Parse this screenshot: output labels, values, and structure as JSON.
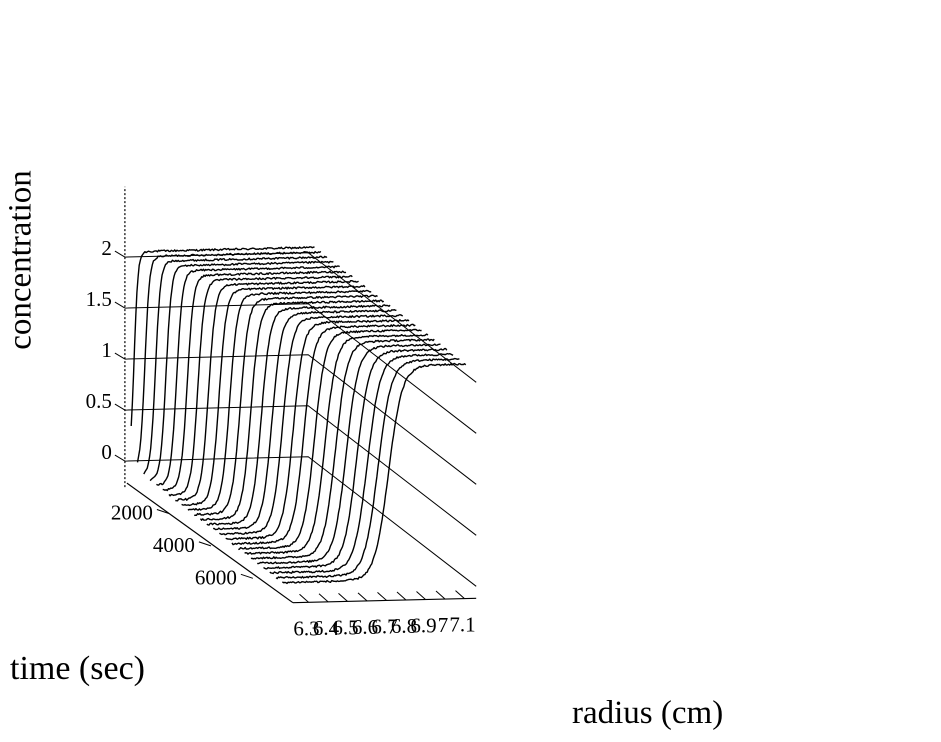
{
  "chart_data": {
    "type": "line",
    "projection": "3d-waterfall",
    "xlabel": "radius (cm)",
    "ylabel": "concentration",
    "tlabel": "time (sec)",
    "x_ticks": [
      6.3,
      6.4,
      6.5,
      6.6,
      6.7,
      6.8,
      6.9,
      7,
      7.1
    ],
    "y_ticks": [
      0,
      0.5,
      1,
      1.5,
      2
    ],
    "t_ticks": [
      2000,
      4000,
      6000
    ],
    "xlim": [
      6.22,
      7.16
    ],
    "ylim": [
      0,
      2.2
    ],
    "tlim": [
      0,
      8000
    ],
    "grid": true,
    "series_model": "sedimentation boundary: c(r) = 2.1 * logistic((r - midpoint) / width), one trace per scan time",
    "series": [
      {
        "time": 300,
        "midpoint": 6.235,
        "width": 0.01
      },
      {
        "time": 600,
        "midpoint": 6.258,
        "width": 0.012
      },
      {
        "time": 900,
        "midpoint": 6.28,
        "width": 0.013
      },
      {
        "time": 1200,
        "midpoint": 6.302,
        "width": 0.014
      },
      {
        "time": 1500,
        "midpoint": 6.324,
        "width": 0.015
      },
      {
        "time": 1800,
        "midpoint": 6.346,
        "width": 0.016
      },
      {
        "time": 2100,
        "midpoint": 6.368,
        "width": 0.017
      },
      {
        "time": 2400,
        "midpoint": 6.39,
        "width": 0.018
      },
      {
        "time": 2700,
        "midpoint": 6.412,
        "width": 0.019
      },
      {
        "time": 3000,
        "midpoint": 6.434,
        "width": 0.02
      },
      {
        "time": 3300,
        "midpoint": 6.456,
        "width": 0.021
      },
      {
        "time": 3600,
        "midpoint": 6.478,
        "width": 0.022
      },
      {
        "time": 3900,
        "midpoint": 6.5,
        "width": 0.023
      },
      {
        "time": 4200,
        "midpoint": 6.522,
        "width": 0.024
      },
      {
        "time": 4500,
        "midpoint": 6.544,
        "width": 0.025
      },
      {
        "time": 4800,
        "midpoint": 6.566,
        "width": 0.026
      },
      {
        "time": 5100,
        "midpoint": 6.588,
        "width": 0.027
      },
      {
        "time": 5400,
        "midpoint": 6.61,
        "width": 0.028
      },
      {
        "time": 5700,
        "midpoint": 6.632,
        "width": 0.029
      },
      {
        "time": 6000,
        "midpoint": 6.654,
        "width": 0.03
      },
      {
        "time": 6300,
        "midpoint": 6.676,
        "width": 0.031
      },
      {
        "time": 6600,
        "midpoint": 6.698,
        "width": 0.032
      },
      {
        "time": 6900,
        "midpoint": 6.72,
        "width": 0.033
      },
      {
        "time": 7200,
        "midpoint": 6.742,
        "width": 0.034
      },
      {
        "time": 7500,
        "midpoint": 6.764,
        "width": 0.035
      }
    ],
    "plateau": 2.1
  }
}
